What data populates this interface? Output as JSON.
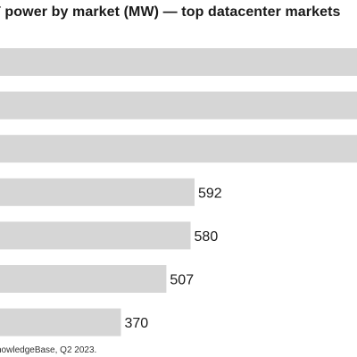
{
  "title": "T power by market (MW) — top datacenter markets",
  "source": "nowledgeBase, Q2 2023.",
  "colors": {
    "bar": "#d6d6d6",
    "text": "#1a1a1a"
  },
  "chart_data": {
    "type": "bar",
    "orientation": "horizontal",
    "title": "T power by market (MW) — top datacenter markets",
    "categories": [
      "",
      "",
      "",
      "",
      "",
      "",
      ""
    ],
    "values": [
      null,
      null,
      null,
      592,
      580,
      507,
      370
    ],
    "xlim": [
      0,
      1100
    ],
    "grid": false,
    "legend": "none"
  }
}
